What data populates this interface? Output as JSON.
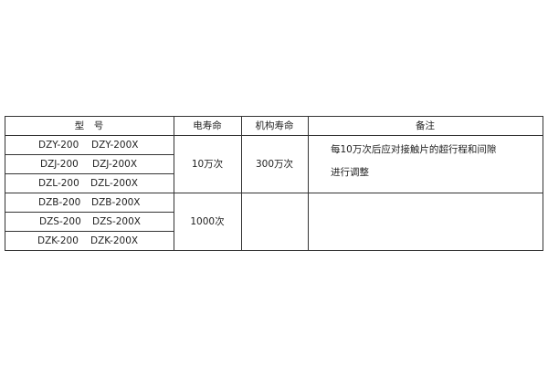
{
  "headers": {
    "model": "型　号",
    "electrical_life": "电寿命",
    "mechanical_life": "机构寿命",
    "remarks": "备注"
  },
  "rows": [
    {
      "model_a": "DZY-200",
      "model_b": "DZY-200X"
    },
    {
      "model_a": "DZJ-200",
      "model_b": "DZJ-200X"
    },
    {
      "model_a": "DZL-200",
      "model_b": "DZL-200X"
    },
    {
      "model_a": "DZB-200",
      "model_b": "DZB-200X"
    },
    {
      "model_a": "DZS-200",
      "model_b": "DZS-200X"
    },
    {
      "model_a": "DZK-200",
      "model_b": "DZK-200X"
    }
  ],
  "groups": [
    {
      "electrical_life": "10万次",
      "mechanical_life": "300万次",
      "remarks_line1": "每10万次后应对接触片的超行程和间隙",
      "remarks_line2": "进行调整"
    },
    {
      "electrical_life": "1000次",
      "mechanical_life": "",
      "remarks_line1": "",
      "remarks_line2": ""
    }
  ]
}
